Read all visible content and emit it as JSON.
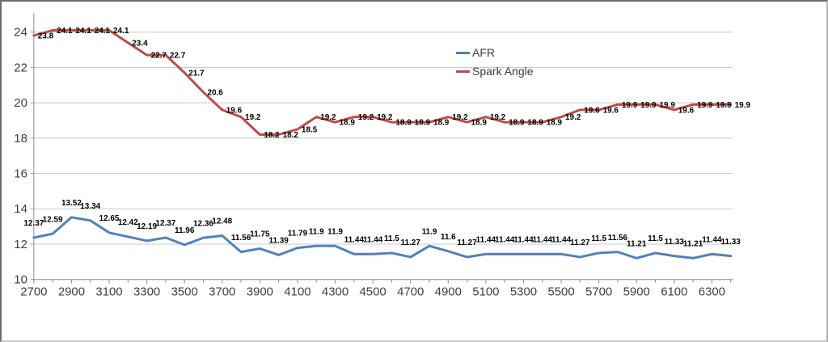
{
  "chart_data": {
    "type": "line",
    "title": "",
    "xlabel": "",
    "ylabel": "",
    "x": [
      2700,
      2800,
      2900,
      3000,
      3100,
      3200,
      3300,
      3400,
      3500,
      3600,
      3700,
      3800,
      3900,
      4000,
      4100,
      4200,
      4300,
      4400,
      4500,
      4600,
      4700,
      4800,
      4900,
      5000,
      5100,
      5200,
      5300,
      5400,
      5500,
      5600,
      5700,
      5800,
      5900,
      6000,
      6100,
      6200,
      6300,
      6400
    ],
    "x_tick_labels": [
      "2700",
      "2900",
      "3100",
      "3300",
      "3500",
      "3700",
      "3900",
      "4100",
      "4300",
      "4500",
      "4700",
      "4900",
      "5100",
      "5300",
      "5500",
      "5700",
      "5900",
      "6100",
      "6300"
    ],
    "yticks": [
      10,
      12,
      14,
      16,
      18,
      20,
      22,
      24
    ],
    "ylim": [
      10,
      25.1
    ],
    "grid": "horizontal",
    "legend_position": "upper-center",
    "series": [
      {
        "name": "AFR",
        "color": "#4F81BD",
        "label_position": "above",
        "values": [
          12.37,
          12.59,
          13.52,
          13.34,
          12.65,
          12.42,
          12.19,
          12.37,
          11.96,
          12.36,
          12.48,
          11.56,
          11.75,
          11.39,
          11.79,
          11.9,
          11.9,
          11.44,
          11.44,
          11.5,
          11.27,
          11.9,
          11.6,
          11.27,
          11.44,
          11.44,
          11.44,
          11.44,
          11.44,
          11.27,
          11.5,
          11.56,
          11.21,
          11.5,
          11.33,
          11.21,
          11.44,
          11.33
        ],
        "labels": [
          "12.37",
          "12.59",
          "13.52",
          "13.34",
          "12.65",
          "12.42",
          "12.19",
          "12.37",
          "11.96",
          "12.36",
          "12.48",
          "11.56",
          "11.75",
          "11.39",
          "11.79",
          "11.9",
          "11.9",
          "11.44",
          "11.44",
          "11.5",
          "11.27",
          "11.9",
          "11.6",
          "11.27",
          "11.44",
          "11.44",
          "11.44",
          "11.44",
          "11.44",
          "11.27",
          "11.5",
          "11.56",
          "11.21",
          "11.5",
          "11.33",
          "11.21",
          "11.44",
          "11.33"
        ]
      },
      {
        "name": "Spark Angle",
        "color": "#BE4B48",
        "label_position": "right",
        "values": [
          23.8,
          24.1,
          24.1,
          24.1,
          24.1,
          23.4,
          22.7,
          22.7,
          21.7,
          20.6,
          19.6,
          19.2,
          18.2,
          18.2,
          18.5,
          19.2,
          18.9,
          19.2,
          19.2,
          18.9,
          18.9,
          18.9,
          19.2,
          18.9,
          19.2,
          18.9,
          18.9,
          18.9,
          19.2,
          19.6,
          19.6,
          19.9,
          19.9,
          19.9,
          19.6,
          19.9,
          19.9,
          19.9
        ],
        "labels": [
          "23.8",
          "24.1",
          "24.1",
          "24.1",
          "24.1",
          "23.4",
          "22.7",
          "22.7",
          "21.7",
          "20.6",
          "19.6",
          "19.2",
          "18.2",
          "18.2",
          "18.5",
          "19.2",
          "18.9",
          "19.2",
          "19.2",
          "18.9",
          "18.9",
          "18.9",
          "19.2",
          "18.9",
          "19.2",
          "18.9",
          "18.9",
          "18.9",
          "19.2",
          "19.6",
          "19.6",
          "19.9",
          "19.9",
          "19.9",
          "19.6",
          "19.9",
          "19.9",
          "19.9"
        ]
      }
    ],
    "style": {
      "background": "#FFFFFF",
      "gridline_color": "#C8C8C8",
      "axis_color": "#8E8E8E",
      "tick_label_color": "#3F3F3F",
      "data_label_color": "#000000",
      "border_dark": "#6E6E6E",
      "border_light": "#C9C9C9"
    }
  }
}
